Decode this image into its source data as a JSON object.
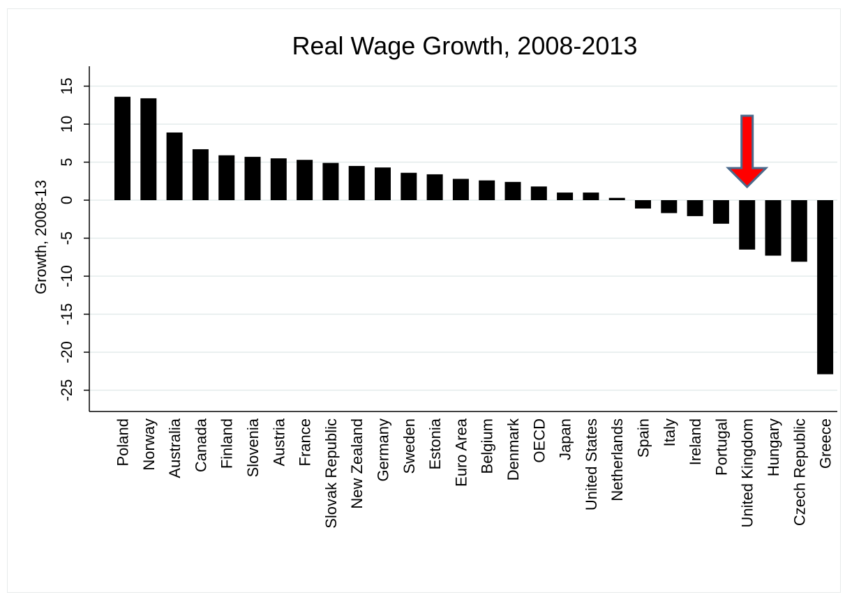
{
  "chart_data": {
    "type": "bar",
    "title": "Real Wage Growth, 2008-2013",
    "xlabel": "",
    "ylabel": "Growth, 2008-13",
    "ylim": [
      -28,
      18
    ],
    "yticks": [
      15,
      10,
      5,
      0,
      -5,
      -10,
      -15,
      -20,
      -25
    ],
    "grid": true,
    "categories": [
      "Poland",
      "Norway",
      "Australia",
      "Canada",
      "Finland",
      "Slovenia",
      "Austria",
      "France",
      "Slovak Republic",
      "New Zealand",
      "Germany",
      "Sweden",
      "Estonia",
      "Euro Area",
      "Belgium",
      "Denmark",
      "OECD",
      "Japan",
      "United States",
      "Netherlands",
      "Spain",
      "Italy",
      "Ireland",
      "Portugal",
      "United Kingdom",
      "Hungary",
      "Czech Republic",
      "Greece"
    ],
    "values": [
      13.6,
      13.4,
      8.9,
      6.7,
      5.9,
      5.7,
      5.5,
      5.3,
      4.9,
      4.5,
      4.3,
      3.6,
      3.4,
      2.8,
      2.6,
      2.4,
      1.8,
      1.0,
      1.0,
      0.3,
      -1.1,
      -1.7,
      -2.1,
      -3.1,
      -6.5,
      -7.3,
      -8.1,
      -22.9
    ],
    "bar_color": "#000000",
    "highlight": {
      "category": "United Kingdom",
      "marker": "down-arrow",
      "color": "#ff0000",
      "outline_color": "#4a6a8c"
    }
  }
}
